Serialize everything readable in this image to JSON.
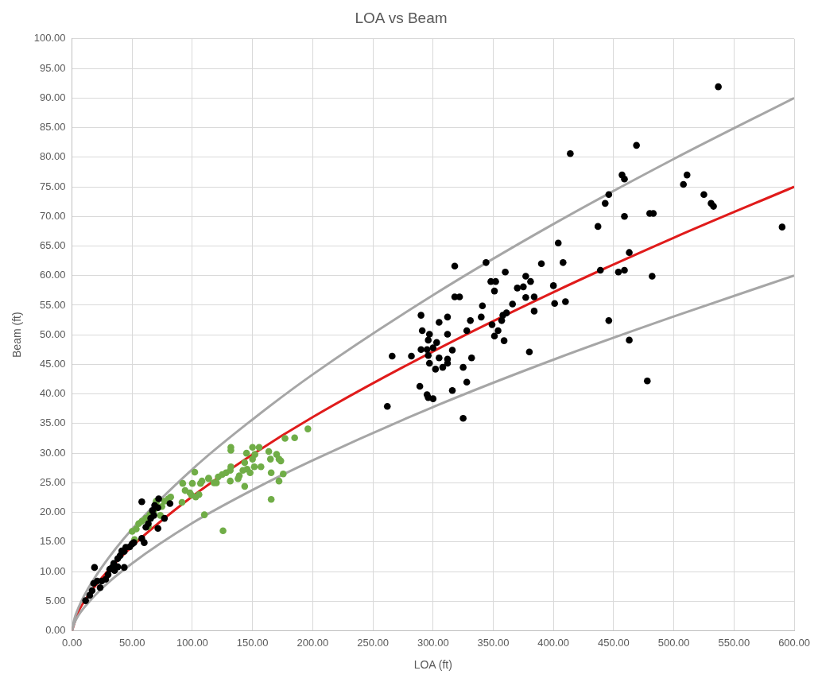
{
  "chart_data": {
    "type": "scatter",
    "title": "LOA vs Beam",
    "xlabel": "LOA (ft)",
    "ylabel": "Beam (ft)",
    "xlim": [
      0,
      600
    ],
    "ylim": [
      0,
      100
    ],
    "xticks": [
      {
        "value": 0,
        "label": "0.00"
      },
      {
        "value": 50,
        "label": "50.00"
      },
      {
        "value": 100,
        "label": "100.00"
      },
      {
        "value": 150,
        "label": "150.00"
      },
      {
        "value": 200,
        "label": "200.00"
      },
      {
        "value": 250,
        "label": "250.00"
      },
      {
        "value": 300,
        "label": "300.00"
      },
      {
        "value": 350,
        "label": "350.00"
      },
      {
        "value": 400,
        "label": "400.00"
      },
      {
        "value": 450,
        "label": "450.00"
      },
      {
        "value": 500,
        "label": "500.00"
      },
      {
        "value": 550,
        "label": "550.00"
      },
      {
        "value": 600,
        "label": "600.00"
      }
    ],
    "yticks": [
      {
        "value": 0,
        "label": "0.00"
      },
      {
        "value": 5,
        "label": "5.00"
      },
      {
        "value": 10,
        "label": "10.00"
      },
      {
        "value": 15,
        "label": "15.00"
      },
      {
        "value": 20,
        "label": "20.00"
      },
      {
        "value": 25,
        "label": "25.00"
      },
      {
        "value": 30,
        "label": "30.00"
      },
      {
        "value": 35,
        "label": "35.00"
      },
      {
        "value": 40,
        "label": "40.00"
      },
      {
        "value": 45,
        "label": "45.00"
      },
      {
        "value": 50,
        "label": "50.00"
      },
      {
        "value": 55,
        "label": "55.00"
      },
      {
        "value": 60,
        "label": "60.00"
      },
      {
        "value": 65,
        "label": "65.00"
      },
      {
        "value": 70,
        "label": "70.00"
      },
      {
        "value": 75,
        "label": "75.00"
      },
      {
        "value": 80,
        "label": "80.00"
      },
      {
        "value": 85,
        "label": "85.00"
      },
      {
        "value": 90,
        "label": "90.00"
      },
      {
        "value": 95,
        "label": "95.00"
      },
      {
        "value": 100,
        "label": "100.00"
      }
    ],
    "grid": true,
    "marker": "circle",
    "series": [
      {
        "type": "line",
        "marker": "none",
        "line_style": "solid",
        "color": "#a6a6a6",
        "x": [
          0,
          2,
          5,
          10,
          25,
          50,
          100,
          150,
          200,
          300,
          400,
          500,
          600
        ],
        "values": [
          0,
          2.0,
          3.7,
          5.9,
          10.8,
          17.2,
          27.3,
          35.7,
          43.3,
          56.7,
          68.7,
          79.7,
          90
        ]
      },
      {
        "type": "line",
        "marker": "none",
        "line_style": "solid",
        "color": "#a6a6a6",
        "x": [
          0,
          2,
          5,
          10,
          25,
          50,
          100,
          150,
          200,
          300,
          400,
          500,
          600
        ],
        "values": [
          0,
          1.3,
          2.5,
          3.9,
          7.2,
          11.4,
          18.2,
          23.8,
          28.8,
          37.8,
          45.8,
          53.1,
          60
        ]
      },
      {
        "type": "scatter",
        "color": "#000000",
        "x": [
          262,
          266,
          282,
          290,
          291,
          297,
          296,
          303,
          290,
          295,
          300,
          296,
          305,
          297,
          302,
          308,
          312,
          312,
          305,
          312,
          312,
          316,
          289,
          295,
          300,
          296,
          316,
          325,
          328,
          325,
          332,
          328,
          331,
          318,
          318,
          322,
          344,
          341,
          340,
          349,
          351,
          354,
          359,
          348,
          352,
          351,
          357,
          358,
          361,
          360,
          366,
          370,
          375,
          377,
          381,
          377,
          384,
          384,
          380,
          390,
          400,
          401,
          404,
          408,
          410,
          414,
          437,
          443,
          446,
          439,
          446,
          457,
          459,
          469,
          459,
          463,
          454,
          459,
          482,
          463,
          478,
          480,
          483,
          508,
          511,
          525,
          531,
          533,
          537,
          590,
          11.3,
          14.7,
          16.7,
          18,
          18.7,
          21,
          24.7,
          28,
          30,
          31.4,
          33.4,
          35.4,
          38,
          38,
          40,
          43.4,
          41.4,
          43.4,
          44.7,
          48,
          50,
          51.4,
          60,
          58,
          61.4,
          63.4,
          65.4,
          68,
          66.8,
          71.4,
          68.7,
          72,
          71.4,
          76.8,
          58,
          81.4,
          34.7,
          23.4
        ],
        "values": [
          37.9,
          46.4,
          46.4,
          53.3,
          50.7,
          50.1,
          49.1,
          48.7,
          47.5,
          47.5,
          47.8,
          46.5,
          46.1,
          45.2,
          44.2,
          44.5,
          45.9,
          45.2,
          52.1,
          53.0,
          50.1,
          47.4,
          41.3,
          39.9,
          39.2,
          39.4,
          40.6,
          44.5,
          42.0,
          35.9,
          46.1,
          50.7,
          52.4,
          61.6,
          56.4,
          56.4,
          62.2,
          54.9,
          53.0,
          51.7,
          49.8,
          50.7,
          49.0,
          59.0,
          59.0,
          57.4,
          52.4,
          53.3,
          53.7,
          60.6,
          55.2,
          57.9,
          58.1,
          59.9,
          59.0,
          56.3,
          56.4,
          54.0,
          47.1,
          62.0,
          58.3,
          55.3,
          65.5,
          62.2,
          55.6,
          80.6,
          68.3,
          72.2,
          73.7,
          60.9,
          52.4,
          77.0,
          76.3,
          82.0,
          70.0,
          63.9,
          60.6,
          60.9,
          59.9,
          49.1,
          42.2,
          70.5,
          70.5,
          75.4,
          77.0,
          73.7,
          72.2,
          71.7,
          91.9,
          68.2,
          5.1,
          6.0,
          6.8,
          8.0,
          10.7,
          8.4,
          8.4,
          8.7,
          9.5,
          10.4,
          10.7,
          10.2,
          10.8,
          12.2,
          12.7,
          10.7,
          13.5,
          13.4,
          14.1,
          14.2,
          14.7,
          14.9,
          14.9,
          15.6,
          17.5,
          18.1,
          19.0,
          19.5,
          20.3,
          20.8,
          21.2,
          22.3,
          17.3,
          19.0,
          21.8,
          21.5,
          11.4,
          7.3
        ]
      },
      {
        "type": "scatter",
        "color": "#70ad47",
        "x": [
          50,
          52,
          53.4,
          55.4,
          58,
          61.4,
          63.4,
          64.7,
          68,
          70,
          73.4,
          74.7,
          76.8,
          80,
          70,
          82,
          91.4,
          92,
          94,
          98,
          99.4,
          100,
          102,
          102.8,
          105.5,
          106.8,
          110,
          113.5,
          118,
          125.5,
          108,
          113.5,
          120,
          121.5,
          124.8,
          128,
          131.5,
          131.5,
          132,
          132,
          132,
          138,
          139,
          143.5,
          142,
          143.5,
          145,
          145.5,
          148,
          150,
          151.5,
          152,
          155.5,
          157,
          163.5,
          164.9,
          165.5,
          165.5,
          170,
          172,
          173.5,
          172,
          175.5,
          177,
          185,
          196,
          150
        ],
        "values": [
          16.8,
          15.4,
          17.2,
          18.1,
          18.5,
          19.0,
          17.6,
          19.6,
          20.3,
          21.7,
          19.5,
          21.0,
          21.9,
          22.3,
          21.9,
          22.6,
          21.7,
          24.9,
          23.7,
          23.3,
          22.9,
          24.9,
          26.8,
          22.6,
          23.0,
          24.9,
          19.6,
          25.7,
          25.0,
          16.9,
          25.3,
          25.8,
          25.0,
          26.0,
          26.4,
          26.7,
          27.1,
          25.3,
          27.7,
          31.0,
          30.5,
          25.7,
          26.2,
          24.4,
          27.1,
          28.4,
          30.0,
          27.3,
          26.7,
          31.0,
          27.7,
          29.8,
          31.0,
          27.7,
          30.3,
          29.0,
          26.7,
          22.2,
          29.8,
          29.0,
          28.7,
          25.3,
          26.5,
          32.5,
          32.6,
          34.1,
          29.0
        ]
      },
      {
        "type": "line",
        "marker": "none",
        "line_style": "solid",
        "color": "#e01b1b",
        "x": [
          0,
          5,
          10,
          25,
          50,
          100,
          150,
          200,
          300,
          400,
          500,
          600
        ],
        "values": [
          0,
          3.1,
          4.9,
          9.0,
          14.3,
          22.7,
          29.8,
          36.1,
          47.2,
          57.2,
          66.4,
          75
        ]
      }
    ]
  }
}
